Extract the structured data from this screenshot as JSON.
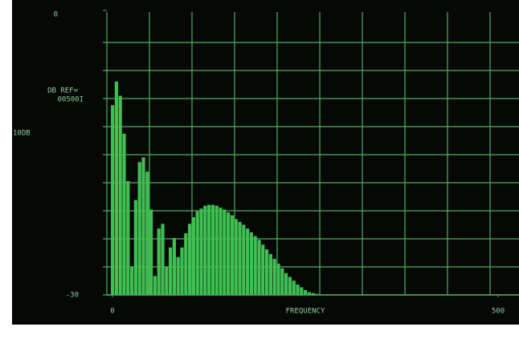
{
  "chart_data": {
    "type": "bar",
    "label_ref": "DB REF=",
    "label_ref_value": "00500I",
    "ylabel": "10DB",
    "xlabel": "FREQUENCY",
    "color": "#3fbf52",
    "x": [
      0,
      5,
      10,
      15,
      20,
      25,
      30,
      35,
      40,
      45,
      50,
      55,
      60,
      65,
      70,
      75,
      80,
      85,
      90,
      95,
      100,
      105,
      110,
      115,
      120,
      125,
      130,
      135,
      140,
      145,
      150,
      155,
      160,
      165,
      170,
      175,
      180,
      185,
      190,
      195,
      200,
      205,
      210,
      215,
      220,
      225,
      230,
      235,
      240,
      245,
      250,
      255,
      260,
      265,
      270
    ],
    "values": [
      -10,
      -7.5,
      -9,
      -13,
      -18,
      -27,
      -20,
      -16,
      -15.5,
      -17,
      -21,
      -28,
      -23,
      -22.5,
      -27,
      -25,
      -24,
      -26,
      -25,
      -23.5,
      -22.5,
      -21.8,
      -21.2,
      -20.9,
      -20.6,
      -20.5,
      -20.5,
      -20.6,
      -20.8,
      -21,
      -21.3,
      -21.6,
      -22,
      -22.3,
      -22.6,
      -23,
      -23.4,
      -23.8,
      -24.2,
      -24.7,
      -25.2,
      -25.7,
      -26.2,
      -26.7,
      -27.2,
      -27.7,
      -28.1,
      -28.5,
      -28.9,
      -29.2,
      -29.5,
      -29.7,
      -29.8,
      -29.9,
      -30
    ],
    "xlim": [
      0,
      500
    ],
    "xticks": [
      0,
      500
    ],
    "ylim": [
      -30,
      0
    ],
    "yticks": [
      -30,
      0
    ]
  }
}
